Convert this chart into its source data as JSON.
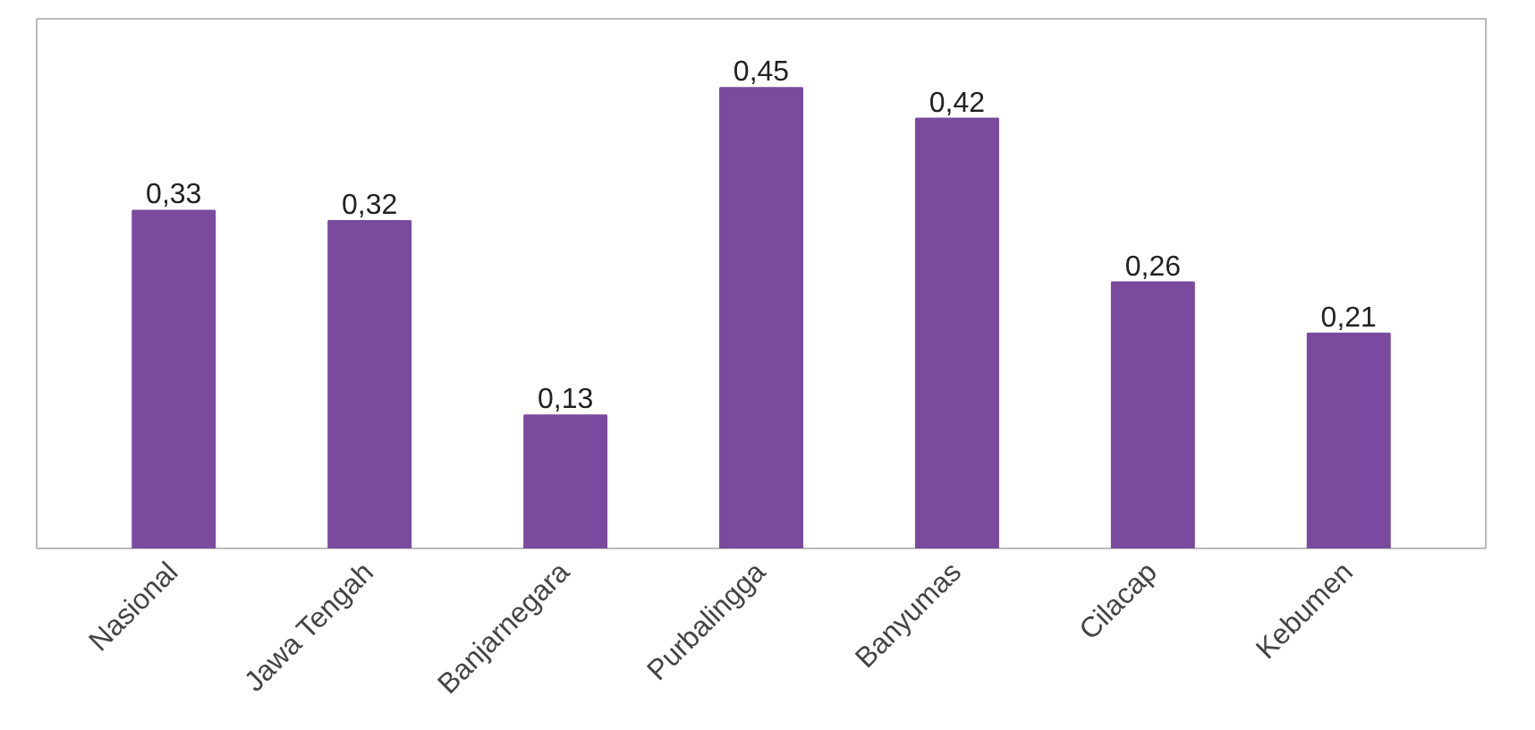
{
  "chart_data": {
    "type": "bar",
    "categories": [
      "Nasional",
      "Jawa Tengah",
      "Banjarnegara",
      "Purbalingga",
      "Banyumas",
      "Cilacap",
      "Kebumen"
    ],
    "values": [
      0.33,
      0.32,
      0.13,
      0.45,
      0.42,
      0.26,
      0.21
    ],
    "color": "#7a4a9e",
    "value_labels": [
      "0,33",
      "0,32",
      "0,13",
      "0,45",
      "0,42",
      "0,26",
      "0,21"
    ]
  }
}
